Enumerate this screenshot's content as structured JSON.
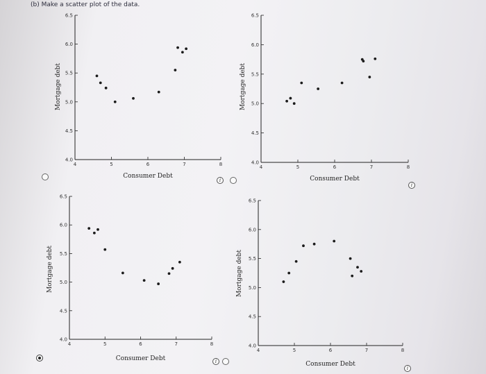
{
  "question": "(b) Make a scatter plot of the data.",
  "chart_data": [
    {
      "type": "scatter",
      "xlabel": "Consumer Debt",
      "ylabel": "Mortgage debt",
      "xlim": [
        4,
        8
      ],
      "ylim": [
        4.0,
        6.5
      ],
      "x_ticks": [
        "4",
        "5",
        "6",
        "7",
        "8"
      ],
      "y_ticks": [
        "4.0",
        "4.5",
        "5.0",
        "5.5",
        "6.0",
        "6.5"
      ],
      "points": [
        [
          4.6,
          5.45
        ],
        [
          4.7,
          5.33
        ],
        [
          4.85,
          5.24
        ],
        [
          5.1,
          5.0
        ],
        [
          5.6,
          5.06
        ],
        [
          6.3,
          5.17
        ],
        [
          6.75,
          5.55
        ],
        [
          6.82,
          5.94
        ],
        [
          6.95,
          5.86
        ],
        [
          7.05,
          5.92
        ]
      ]
    },
    {
      "type": "scatter",
      "xlabel": "Consumer Debt",
      "ylabel": "Mortgage debt",
      "xlim": [
        4,
        8
      ],
      "ylim": [
        4.0,
        6.5
      ],
      "x_ticks": [
        "4",
        "5",
        "6",
        "7",
        "8"
      ],
      "y_ticks": [
        "4.0",
        "4.5",
        "5.0",
        "5.5",
        "6.0",
        "6.5"
      ],
      "points": [
        [
          4.7,
          5.04
        ],
        [
          4.8,
          5.09
        ],
        [
          4.9,
          5.0
        ],
        [
          5.1,
          5.35
        ],
        [
          5.55,
          5.25
        ],
        [
          6.2,
          5.35
        ],
        [
          6.75,
          5.75
        ],
        [
          6.78,
          5.72
        ],
        [
          6.95,
          5.45
        ],
        [
          7.1,
          5.76
        ]
      ]
    },
    {
      "type": "scatter",
      "xlabel": "Consumer Debt",
      "ylabel": "Mortgage debt",
      "xlim": [
        4,
        8
      ],
      "ylim": [
        4.0,
        6.5
      ],
      "x_ticks": [
        "4",
        "5",
        "6",
        "7",
        "8"
      ],
      "y_ticks": [
        "4.0",
        "4.5",
        "5.0",
        "5.5",
        "6.0",
        "6.5"
      ],
      "points": [
        [
          4.55,
          5.94
        ],
        [
          4.7,
          5.86
        ],
        [
          4.8,
          5.92
        ],
        [
          5.0,
          5.57
        ],
        [
          5.5,
          5.16
        ],
        [
          6.1,
          5.03
        ],
        [
          6.5,
          4.97
        ],
        [
          6.8,
          5.15
        ],
        [
          6.9,
          5.24
        ],
        [
          7.1,
          5.35
        ]
      ]
    },
    {
      "type": "scatter",
      "xlabel": "Consumer Debt",
      "ylabel": "Mortgage debt",
      "xlim": [
        4,
        8
      ],
      "ylim": [
        4.0,
        6.5
      ],
      "x_ticks": [
        "4",
        "5",
        "6",
        "7",
        "8"
      ],
      "y_ticks": [
        "4.0",
        "4.5",
        "5.0",
        "5.5",
        "6.0",
        "6.5"
      ],
      "points": [
        [
          4.7,
          5.1
        ],
        [
          4.85,
          5.25
        ],
        [
          5.05,
          5.45
        ],
        [
          5.25,
          5.72
        ],
        [
          5.55,
          5.75
        ],
        [
          6.1,
          5.8
        ],
        [
          6.55,
          5.5
        ],
        [
          6.6,
          5.2
        ],
        [
          6.75,
          5.35
        ],
        [
          6.85,
          5.28
        ]
      ]
    }
  ]
}
